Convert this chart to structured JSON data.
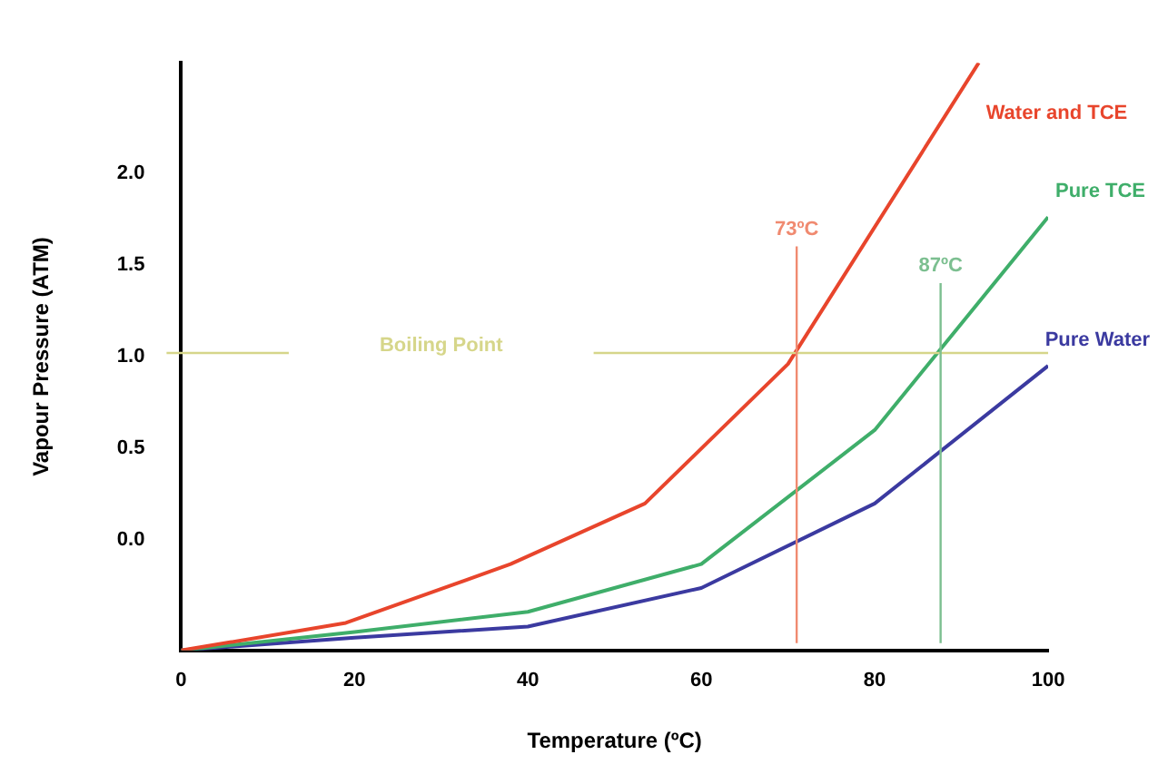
{
  "chart_data": {
    "type": "line",
    "xlabel": "Temperature (ºC)",
    "ylabel": "Vapour Pressure (ATM)",
    "xlim": [
      0,
      100
    ],
    "xticks": [
      0,
      20,
      40,
      60,
      80,
      100
    ],
    "ylim": [
      -0.6,
      2.6
    ],
    "yticks": [
      {
        "value": 0,
        "label": "0.0"
      },
      0.5,
      {
        "value": 1,
        "label": "1.0"
      },
      1.5,
      {
        "value": 2,
        "label": "2.0"
      }
    ],
    "grid": false,
    "legend": false,
    "marker": "none",
    "line_style": "solid",
    "series": [
      {
        "name": "Water and TCE",
        "color": "#e8452c",
        "x": [
          0,
          19,
          38,
          53.5,
          70,
          92
        ],
        "values": [
          -0.6,
          -0.45,
          -0.13,
          0.2,
          0.96,
          2.6
        ]
      },
      {
        "name": "Pure TCE",
        "color": "#3fae6a",
        "x": [
          0,
          20,
          40,
          60,
          80,
          100
        ],
        "values": [
          -0.6,
          -0.5,
          -0.39,
          -0.13,
          0.6,
          1.76
        ]
      },
      {
        "name": "Pure Water",
        "color": "#3b3aa0",
        "x": [
          0,
          20,
          40,
          60,
          80,
          100
        ],
        "values": [
          -0.6,
          -0.53,
          -0.47,
          -0.26,
          0.2,
          0.95
        ]
      }
    ],
    "ref_lines": [
      {
        "axis": "y",
        "value": 1.02,
        "label": "Boiling Point",
        "color": "#d6d68a"
      },
      {
        "axis": "x",
        "value": 71,
        "label": "73ºC",
        "color": "#f08a70"
      },
      {
        "axis": "x",
        "value": 87.6,
        "label": "87ºC",
        "color": "#7cbf90"
      }
    ]
  }
}
